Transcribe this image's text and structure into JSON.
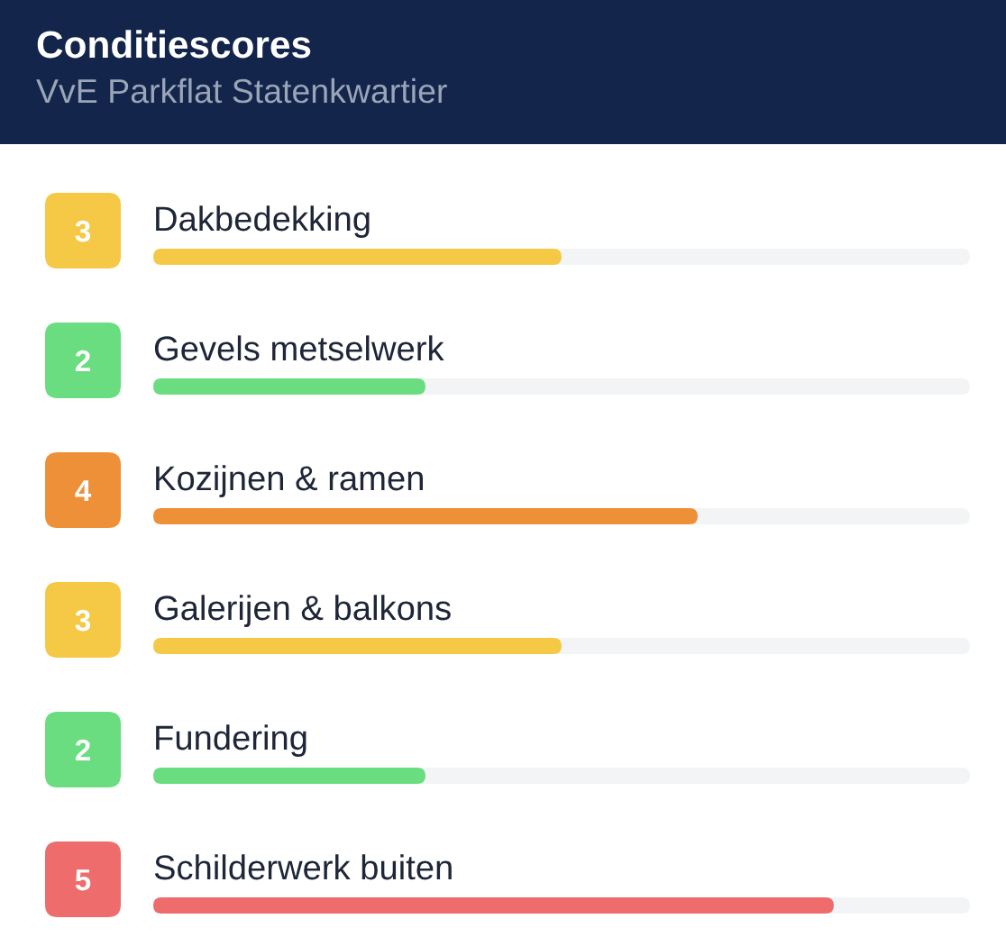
{
  "chart_data": {
    "type": "bar",
    "orientation": "horizontal",
    "title": "Conditiescores",
    "subtitle": "VvE Parkflat Statenkwartier",
    "categories": [
      "Dakbedekking",
      "Gevels metselwerk",
      "Kozijnen & ramen",
      "Galerijen & balkons",
      "Fundering",
      "Schilderwerk buiten"
    ],
    "values": [
      3,
      2,
      4,
      3,
      2,
      5
    ],
    "colors": [
      "#f5c945",
      "#69dd7f",
      "#ee9038",
      "#f5c945",
      "#69dd7f",
      "#ee6c6c"
    ],
    "xlim": [
      0,
      6
    ],
    "data_labels": true,
    "tick_labels": "y"
  }
}
